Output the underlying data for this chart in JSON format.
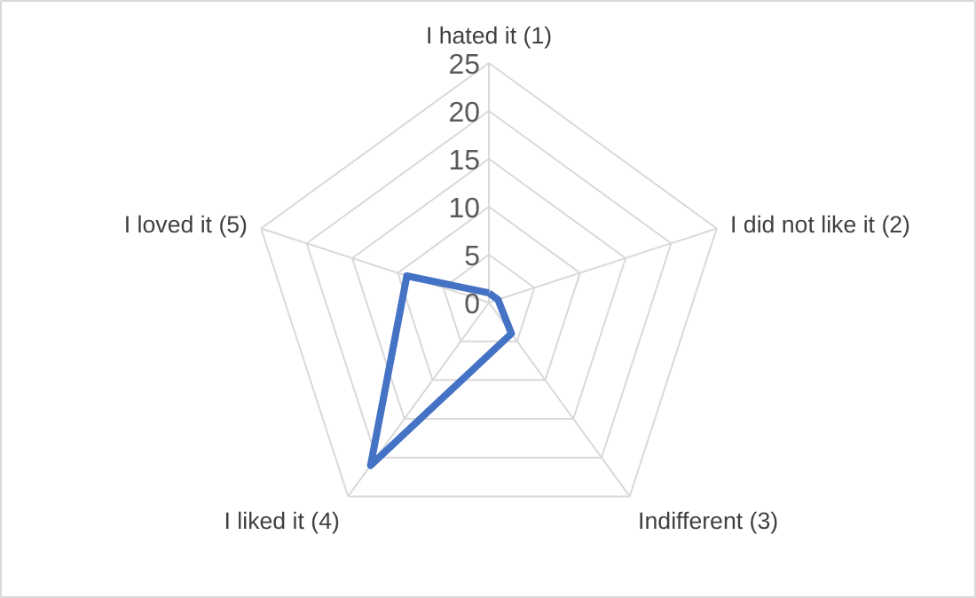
{
  "chart_data": {
    "type": "radar",
    "categories": [
      "I hated it (1)",
      "I did not like it (2)",
      "Indifferent (3)",
      "I liked it (4)",
      "I loved it (5)"
    ],
    "series": [
      {
        "color": "#4472c4",
        "values": [
          1,
          1,
          4,
          21,
          9
        ]
      }
    ],
    "ylim": [
      0,
      25
    ],
    "yticks": [
      0,
      5,
      10,
      15,
      20,
      25
    ],
    "grid": true
  }
}
